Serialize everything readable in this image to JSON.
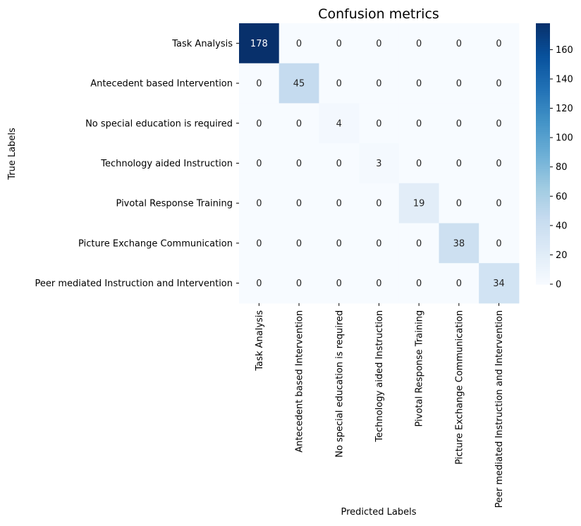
{
  "chart_data": {
    "type": "heatmap",
    "title": "Confusion metrics",
    "xlabel": "Predicted Labels",
    "ylabel": "True Labels",
    "x_categories": [
      "Task Analysis",
      "Antecedent based Intervention",
      "No special education is required",
      "Technology aided Instruction",
      "Pivotal Response Training",
      "Picture Exchange Communication",
      "Peer mediated Instruction and Intervention"
    ],
    "y_categories": [
      "Task Analysis",
      "Antecedent based Intervention",
      "No special education is required",
      "Technology aided Instruction",
      "Pivotal Response Training",
      "Picture Exchange Communication",
      "Peer mediated Instruction and Intervention"
    ],
    "values": [
      [
        178,
        0,
        0,
        0,
        0,
        0,
        0
      ],
      [
        0,
        45,
        0,
        0,
        0,
        0,
        0
      ],
      [
        0,
        0,
        4,
        0,
        0,
        0,
        0
      ],
      [
        0,
        0,
        0,
        3,
        0,
        0,
        0
      ],
      [
        0,
        0,
        0,
        0,
        19,
        0,
        0
      ],
      [
        0,
        0,
        0,
        0,
        0,
        38,
        0
      ],
      [
        0,
        0,
        0,
        0,
        0,
        0,
        34
      ]
    ],
    "colormap": "Blues",
    "colorbar": {
      "range": [
        0,
        178
      ],
      "ticks": [
        0,
        20,
        40,
        60,
        80,
        100,
        120,
        140,
        160
      ]
    },
    "colors": {
      "low": "#f7fbff",
      "high": "#08306b"
    }
  }
}
